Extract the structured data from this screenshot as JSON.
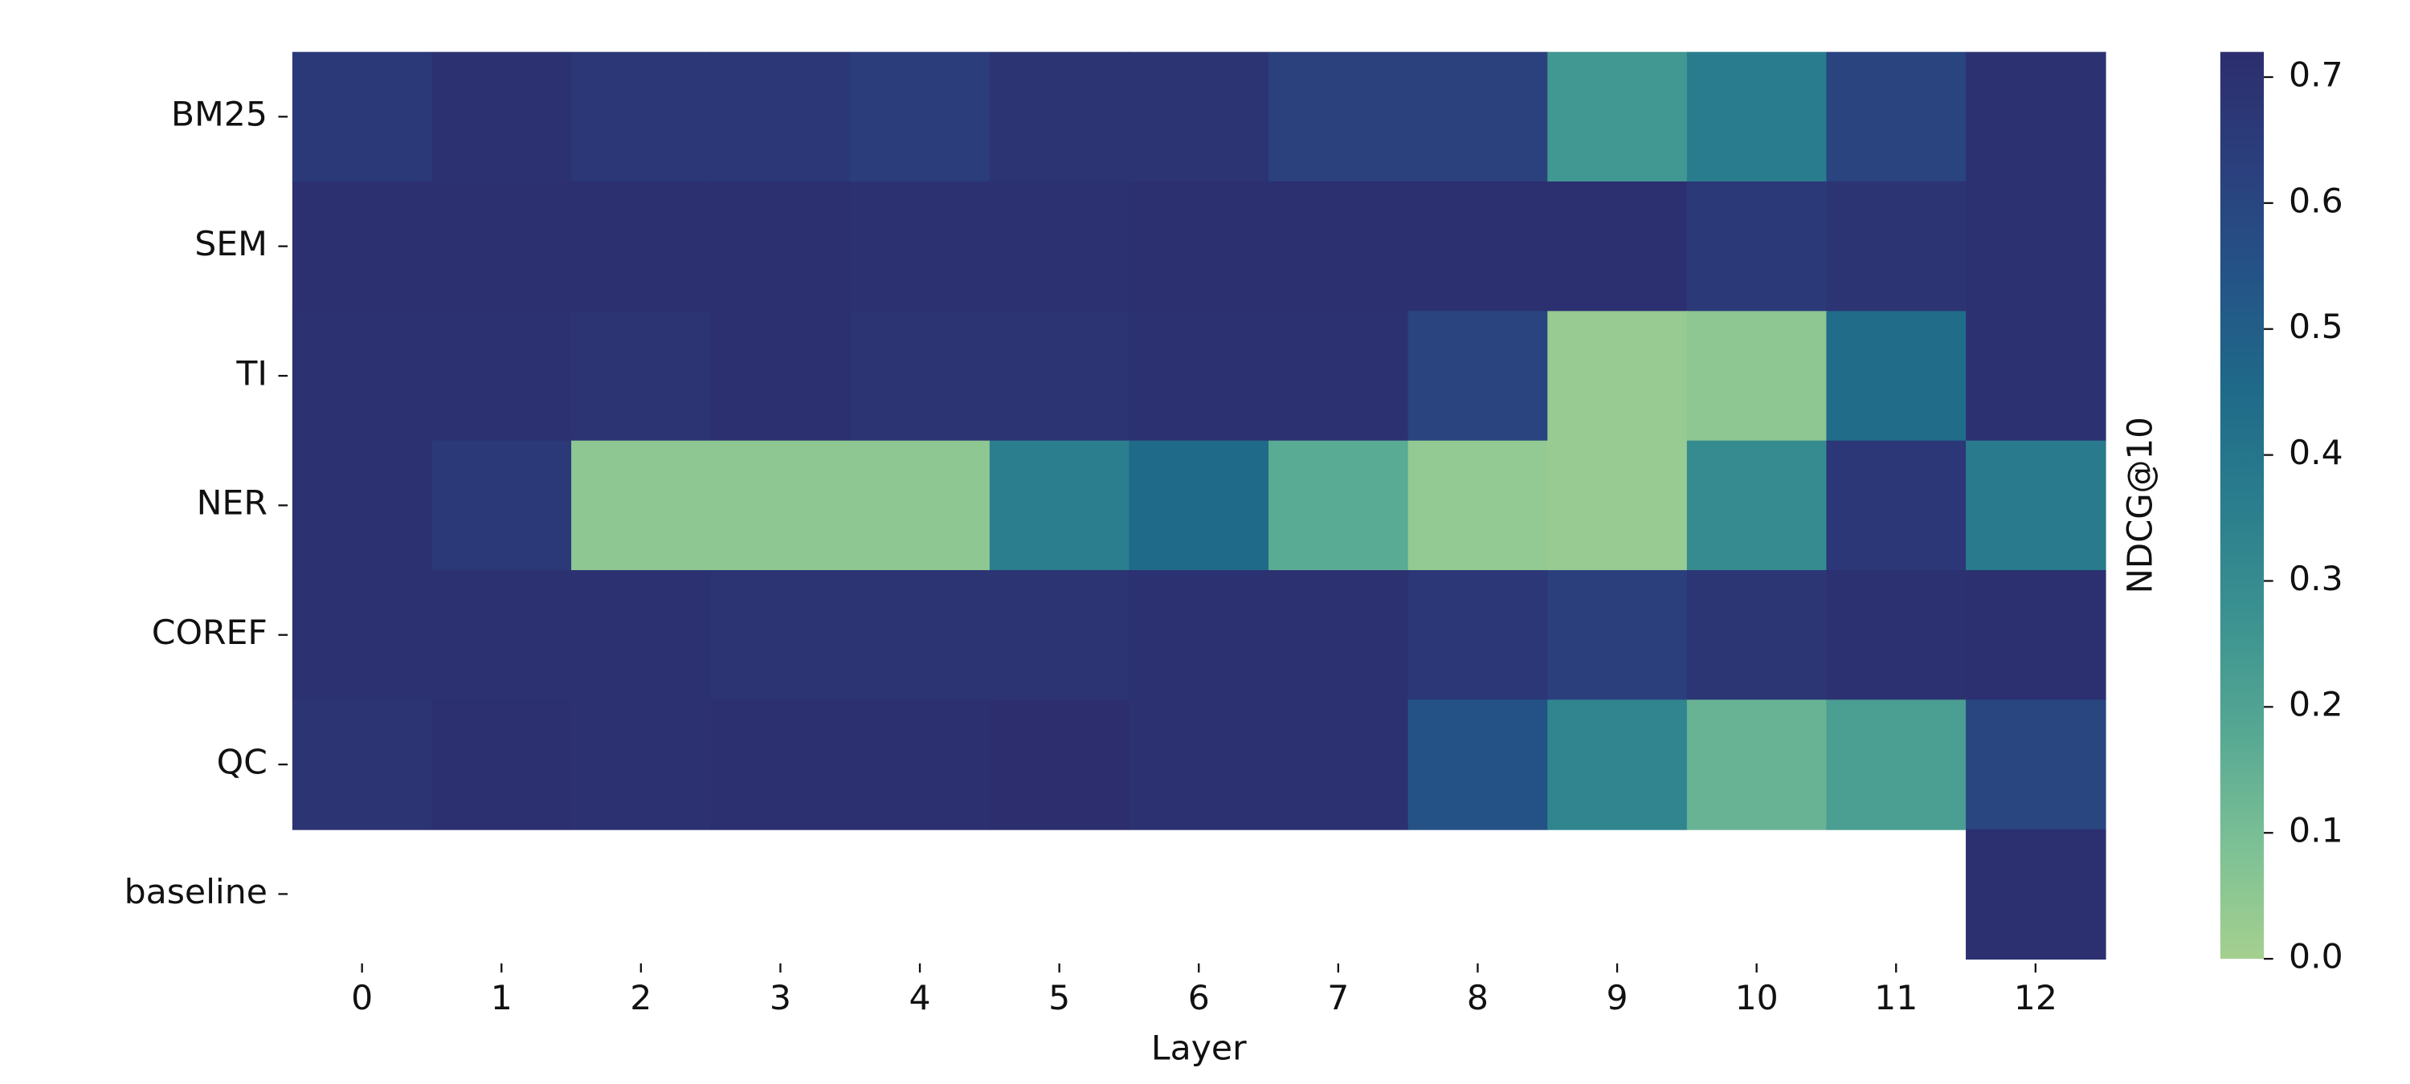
{
  "chart_data": {
    "type": "heatmap",
    "x_label": "Layer",
    "colorbar_label": "NDCG@10",
    "categories": [
      "0",
      "1",
      "2",
      "3",
      "4",
      "5",
      "6",
      "7",
      "8",
      "9",
      "10",
      "11",
      "12"
    ],
    "rows": [
      "BM25",
      "SEM",
      "TI",
      "NER",
      "COREF",
      "QC",
      "baseline"
    ],
    "values": [
      [
        0.66,
        0.7,
        0.67,
        0.67,
        0.64,
        0.69,
        0.69,
        0.62,
        0.62,
        0.25,
        0.37,
        0.61,
        0.7
      ],
      [
        0.71,
        0.71,
        0.71,
        0.71,
        0.7,
        0.7,
        0.71,
        0.71,
        0.71,
        0.71,
        0.66,
        0.69,
        0.7
      ],
      [
        0.7,
        0.7,
        0.69,
        0.71,
        0.69,
        0.69,
        0.7,
        0.7,
        0.61,
        0.03,
        0.05,
        0.44,
        0.7
      ],
      [
        0.7,
        0.66,
        0.05,
        0.05,
        0.05,
        0.36,
        0.45,
        0.17,
        0.04,
        0.03,
        0.3,
        0.67,
        0.38
      ],
      [
        0.7,
        0.7,
        0.7,
        0.69,
        0.69,
        0.69,
        0.7,
        0.7,
        0.67,
        0.63,
        0.68,
        0.7,
        0.71
      ],
      [
        0.69,
        0.71,
        0.7,
        0.71,
        0.71,
        0.72,
        0.7,
        0.7,
        0.55,
        0.33,
        0.14,
        0.22,
        0.6
      ],
      [
        null,
        null,
        null,
        null,
        null,
        null,
        null,
        null,
        null,
        null,
        null,
        null,
        0.71
      ]
    ],
    "zlim": [
      0,
      0.72
    ],
    "zticks": [
      {
        "value": 0,
        "label": "0.0"
      },
      0.1,
      0.2,
      0.3,
      0.4,
      0.5,
      0.6,
      0.7
    ],
    "colormap": [
      "#a5d08f",
      "#7cc095",
      "#56a893",
      "#3b9290",
      "#2a7e8d",
      "#1f6a89",
      "#245487",
      "#2b3f7d",
      "#2c2e6e"
    ]
  }
}
